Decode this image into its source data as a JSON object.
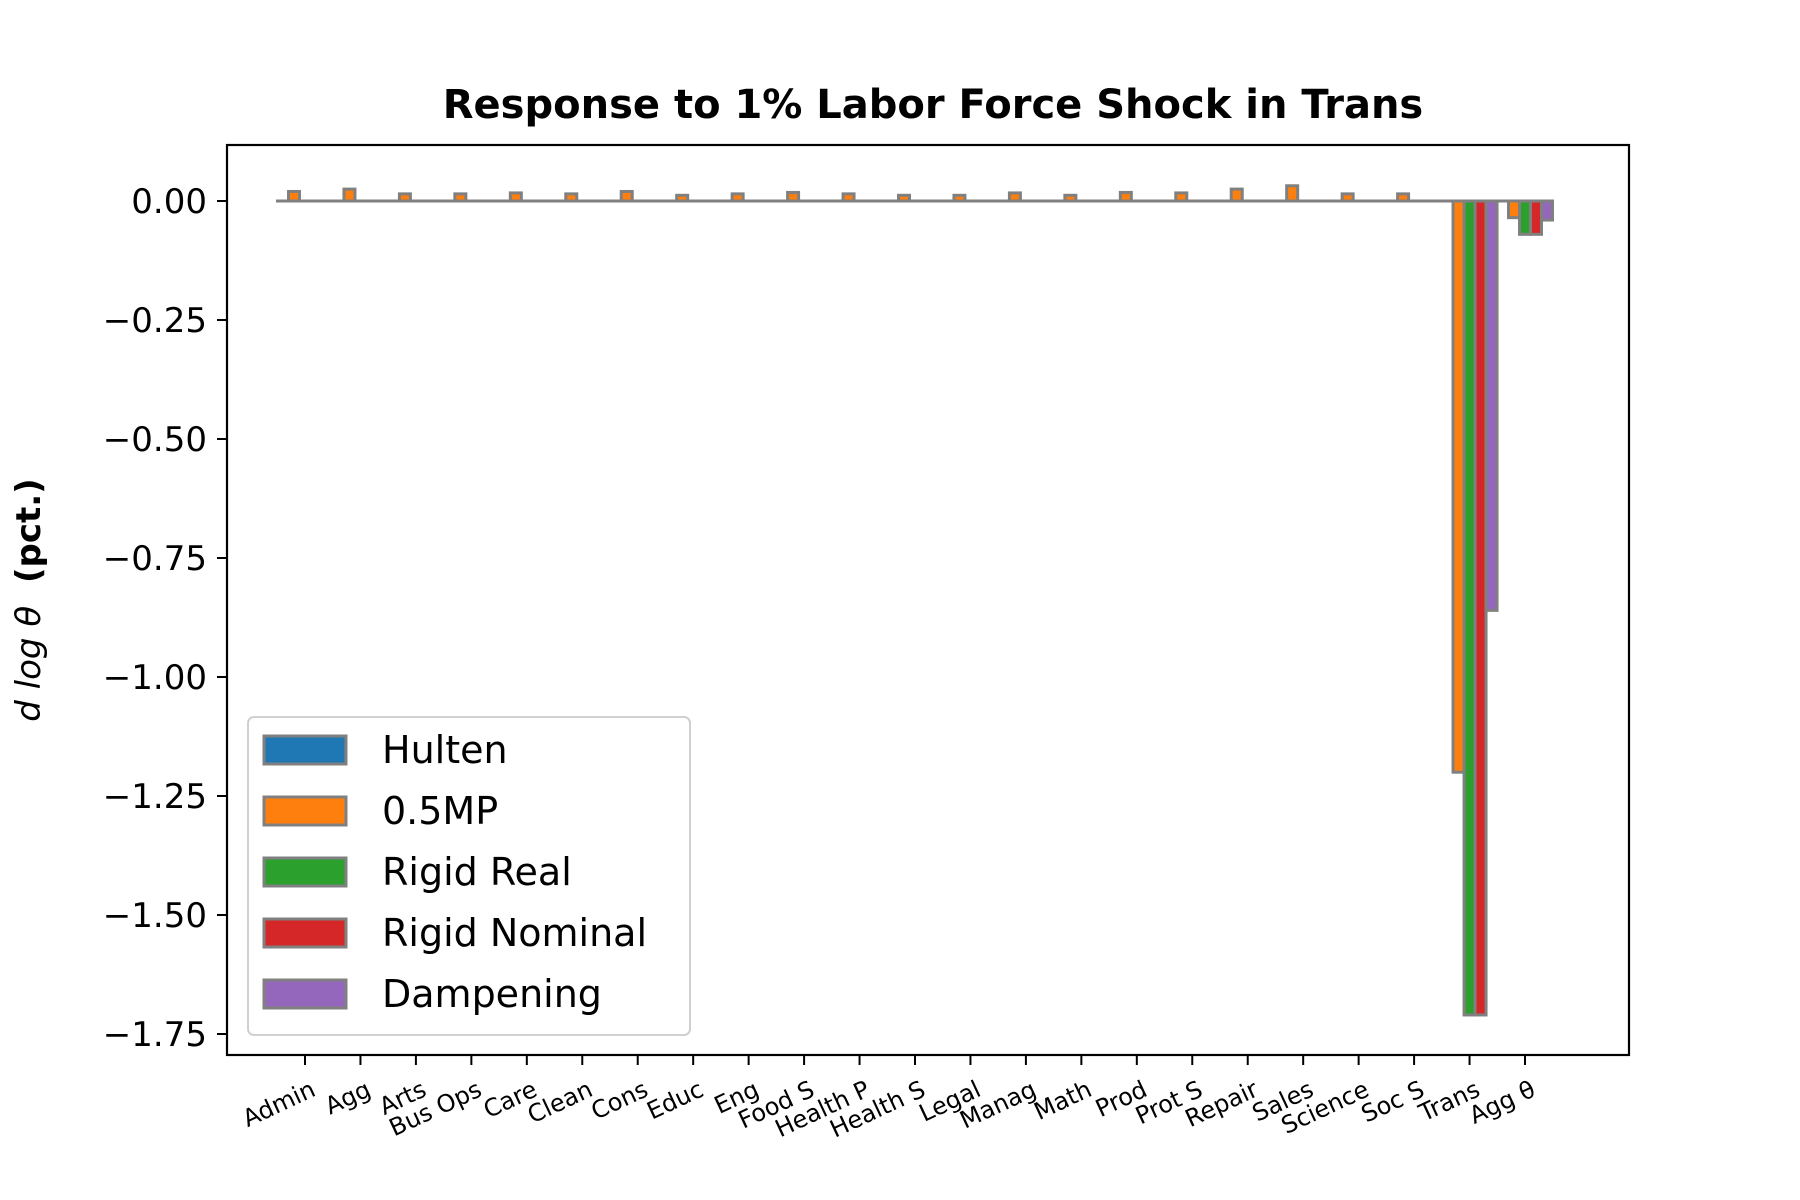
{
  "chart_data": {
    "type": "bar",
    "title": "Response to 1% Labor Force Shock in Trans",
    "ylabel_prefix": "d log θ",
    "ylabel_suffix": "(pct.)",
    "xlabel": "",
    "ylim": [
      -1.8,
      0.12
    ],
    "yticks": [
      0.0,
      -0.25,
      -0.5,
      -0.75,
      -1.0,
      -1.25,
      -1.5,
      -1.75
    ],
    "ytick_labels": [
      "0.00",
      "−0.25",
      "−0.50",
      "−0.75",
      "−1.00",
      "−1.25",
      "−1.50",
      "−1.75"
    ],
    "grid": false,
    "legend_position": "lower-left",
    "bar_edge_color": "#808080",
    "categories": [
      "Admin",
      "Agg",
      "Arts",
      "Bus Ops",
      "Care",
      "Clean",
      "Cons",
      "Educ",
      "Eng",
      "Food S",
      "Health P",
      "Health S",
      "Legal",
      "Manag",
      "Math",
      "Prod",
      "Prot S",
      "Repair",
      "Sales",
      "Science",
      "Soc S",
      "Trans",
      "Agg θ"
    ],
    "series": [
      {
        "name": "Hulten",
        "color": "#1f77b4",
        "values": [
          0,
          0,
          0,
          0,
          0,
          0,
          0,
          0,
          0,
          0,
          0,
          0,
          0,
          0,
          0,
          0,
          0,
          0,
          0,
          0,
          0,
          0,
          0
        ]
      },
      {
        "name": "0.5MP",
        "color": "#ff7f0e",
        "values": [
          0.02,
          0.025,
          0.015,
          0.015,
          0.017,
          0.015,
          0.02,
          0.012,
          0.015,
          0.018,
          0.015,
          0.012,
          0.012,
          0.017,
          0.012,
          0.018,
          0.017,
          0.025,
          0.032,
          0.015,
          0.015,
          -1.2,
          -0.035
        ]
      },
      {
        "name": "Rigid Real",
        "color": "#2ca02c",
        "values": [
          0,
          0,
          0,
          0,
          0,
          0,
          0,
          0,
          0,
          0,
          0,
          0,
          0,
          0,
          0,
          0,
          0,
          0,
          0,
          0,
          0,
          -1.71,
          -0.07
        ]
      },
      {
        "name": "Rigid Nominal",
        "color": "#d62728",
        "values": [
          0,
          0,
          0,
          0,
          0,
          0,
          0,
          0,
          0,
          0,
          0,
          0,
          0,
          0,
          0,
          0,
          0,
          0,
          0,
          0,
          0,
          -1.71,
          -0.07
        ]
      },
      {
        "name": "Dampening",
        "color": "#9467bd",
        "values": [
          0,
          0,
          0,
          0,
          0,
          0,
          0,
          0,
          0,
          0,
          0,
          0,
          0,
          0,
          0,
          0,
          0,
          0,
          0,
          0,
          0,
          -0.86,
          -0.04
        ]
      }
    ]
  }
}
